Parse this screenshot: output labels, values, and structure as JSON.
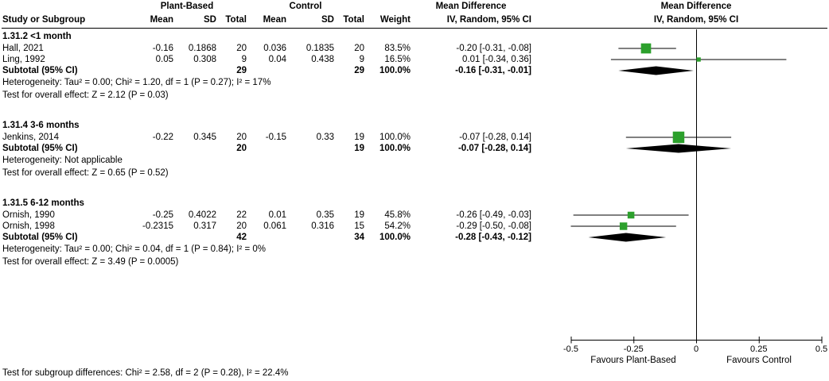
{
  "header": {
    "study_col": "Study or Subgroup",
    "group1": "Plant-Based",
    "group2": "Control",
    "mean": "Mean",
    "sd": "SD",
    "total": "Total",
    "weight": "Weight",
    "md": "Mean Difference",
    "method": "IV, Random, 95% CI"
  },
  "chart_data": {
    "type": "forest",
    "effect_measure": "Mean Difference",
    "model": "IV, Random, 95% CI",
    "square_color": "#2ca02c",
    "diamond_color": "#000000",
    "line_color": "#000000",
    "x_axis": {
      "min": -0.5,
      "max": 0.5,
      "ticks": [
        -0.5,
        -0.25,
        0,
        0.25,
        0.5
      ],
      "tick_labels": [
        "-0.5",
        "-0.25",
        "0",
        "0.25",
        "0.5"
      ],
      "left_label": "Favours Plant-Based",
      "right_label": "Favours Control"
    },
    "subgroups": [
      {
        "label": "1.31.2 <1 month",
        "studies": [
          {
            "study": "Hall, 2021",
            "t_mean": "-0.16",
            "t_sd": "0.1868",
            "t_total": "20",
            "c_mean": "0.036",
            "c_sd": "0.1835",
            "c_total": "20",
            "weight": "83.5%",
            "weight_pct": 83.5,
            "ci_text": "-0.20 [-0.31, -0.08]",
            "est": -0.2,
            "lo": -0.31,
            "hi": -0.08
          },
          {
            "study": "Ling, 1992",
            "t_mean": "0.05",
            "t_sd": "0.308",
            "t_total": "9",
            "c_mean": "0.04",
            "c_sd": "0.438",
            "c_total": "9",
            "weight": "16.5%",
            "weight_pct": 16.5,
            "ci_text": "0.01 [-0.34, 0.36]",
            "est": 0.01,
            "lo": -0.34,
            "hi": 0.36
          }
        ],
        "subtotal": {
          "label": "Subtotal (95% CI)",
          "t_total": "29",
          "c_total": "29",
          "weight": "100.0%",
          "ci_text": "-0.16 [-0.31, -0.01]",
          "est": -0.16,
          "lo": -0.31,
          "hi": -0.01
        },
        "heterogeneity": "Heterogeneity: Tau² = 0.00; Chi² = 1.20, df = 1 (P = 0.27); I² = 17%",
        "overall_effect": "Test for overall effect: Z = 2.12 (P = 0.03)"
      },
      {
        "label": "1.31.4 3-6 months",
        "studies": [
          {
            "study": "Jenkins, 2014",
            "t_mean": "-0.22",
            "t_sd": "0.345",
            "t_total": "20",
            "c_mean": "-0.15",
            "c_sd": "0.33",
            "c_total": "19",
            "weight": "100.0%",
            "weight_pct": 100.0,
            "ci_text": "-0.07 [-0.28, 0.14]",
            "est": -0.07,
            "lo": -0.28,
            "hi": 0.14
          }
        ],
        "subtotal": {
          "label": "Subtotal (95% CI)",
          "t_total": "20",
          "c_total": "19",
          "weight": "100.0%",
          "ci_text": "-0.07 [-0.28, 0.14]",
          "est": -0.07,
          "lo": -0.28,
          "hi": 0.14
        },
        "heterogeneity": "Heterogeneity: Not applicable",
        "overall_effect": "Test for overall effect: Z = 0.65 (P = 0.52)"
      },
      {
        "label": "1.31.5 6-12 months",
        "studies": [
          {
            "study": "Ornish, 1990",
            "t_mean": "-0.25",
            "t_sd": "0.4022",
            "t_total": "22",
            "c_mean": "0.01",
            "c_sd": "0.35",
            "c_total": "19",
            "weight": "45.8%",
            "weight_pct": 45.8,
            "ci_text": "-0.26 [-0.49, -0.03]",
            "est": -0.26,
            "lo": -0.49,
            "hi": -0.03
          },
          {
            "study": "Ornish, 1998",
            "t_mean": "-0.2315",
            "t_sd": "0.317",
            "t_total": "20",
            "c_mean": "0.061",
            "c_sd": "0.316",
            "c_total": "15",
            "weight": "54.2%",
            "weight_pct": 54.2,
            "ci_text": "-0.29 [-0.50, -0.08]",
            "est": -0.29,
            "lo": -0.5,
            "hi": -0.08
          }
        ],
        "subtotal": {
          "label": "Subtotal (95% CI)",
          "t_total": "42",
          "c_total": "34",
          "weight": "100.0%",
          "ci_text": "-0.28 [-0.43, -0.12]",
          "est": -0.28,
          "lo": -0.43,
          "hi": -0.12
        },
        "heterogeneity": "Heterogeneity: Tau² = 0.00; Chi² = 0.04, df = 1 (P = 0.84); I² = 0%",
        "overall_effect": "Test for overall effect: Z = 3.49 (P = 0.0005)"
      }
    ],
    "footnote": "Test for subgroup differences: Chi² = 2.58, df = 2 (P = 0.28), I² = 22.4%"
  }
}
